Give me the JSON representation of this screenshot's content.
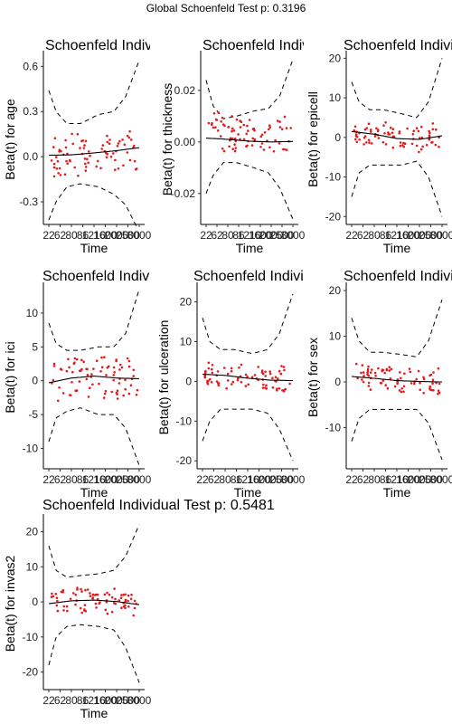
{
  "global_title": "Global Schoenfeld Test p: 0.3196",
  "chart_data": [
    {
      "type": "scatter",
      "title": "Schoenfeld Individual Test p",
      "xlabel": "Time",
      "ylabel": "Beta(t) for age",
      "xticks": [
        "22",
        "62",
        "80",
        "86",
        "1210",
        "1600",
        "2000",
        "2500",
        "3000"
      ],
      "ylim": [
        -0.45,
        0.68
      ],
      "yticks": [
        -0.3,
        0.0,
        0.3,
        0.6
      ],
      "ytick_labels": [
        "-0.3",
        "0.0",
        "0.3",
        "0.6"
      ],
      "smooth": {
        "x": [
          0,
          0.25,
          0.5,
          0.75,
          1
        ],
        "y": [
          0.01,
          0.012,
          0.025,
          0.04,
          0.06
        ]
      },
      "upper_band": {
        "x": [
          0,
          0.08,
          0.2,
          0.35,
          0.55,
          0.72,
          0.85,
          1
        ],
        "y": [
          0.44,
          0.3,
          0.22,
          0.22,
          0.28,
          0.3,
          0.4,
          0.64
        ]
      },
      "lower_band": {
        "x": [
          0,
          0.08,
          0.2,
          0.35,
          0.55,
          0.72,
          0.85,
          1
        ],
        "y": [
          -0.42,
          -0.3,
          -0.2,
          -0.18,
          -0.2,
          -0.25,
          -0.32,
          -0.5
        ]
      },
      "residual_range": [
        -0.18,
        0.18
      ],
      "seed": 11
    },
    {
      "type": "scatter",
      "title": "Schoenfeld Individual Test p",
      "xlabel": "Time",
      "ylabel": "Beta(t) for thickness",
      "xticks": [
        "22",
        "62",
        "80",
        "86",
        "1210",
        "1600",
        "2000",
        "2500",
        "3000"
      ],
      "ylim": [
        -0.032,
        0.034
      ],
      "yticks": [
        -0.02,
        0.0,
        0.02
      ],
      "ytick_labels": [
        "-0.02",
        "0.00",
        "0.02"
      ],
      "smooth": {
        "x": [
          0,
          0.25,
          0.5,
          0.75,
          1
        ],
        "y": [
          0.0015,
          0.001,
          0.0003,
          0.0,
          0.0002
        ]
      },
      "upper_band": {
        "x": [
          0,
          0.08,
          0.2,
          0.35,
          0.55,
          0.72,
          0.85,
          1
        ],
        "y": [
          0.024,
          0.014,
          0.009,
          0.01,
          0.012,
          0.013,
          0.018,
          0.032
        ]
      },
      "lower_band": {
        "x": [
          0,
          0.08,
          0.2,
          0.35,
          0.55,
          0.72,
          0.85,
          1
        ],
        "y": [
          -0.02,
          -0.013,
          -0.008,
          -0.008,
          -0.01,
          -0.012,
          -0.018,
          -0.03
        ]
      },
      "residual_range": [
        -0.006,
        0.012
      ],
      "seed": 23
    },
    {
      "type": "scatter",
      "title": "Schoenfeld Individual Test p",
      "xlabel": "Time",
      "ylabel": "Beta(t) for epicell",
      "xticks": [
        "22",
        "62",
        "80",
        "86",
        "1210",
        "1600",
        "2000",
        "2500",
        "3000"
      ],
      "ylim": [
        -22,
        21
      ],
      "yticks": [
        -20,
        -10,
        0,
        10,
        20
      ],
      "ytick_labels": [
        "-20",
        "-10",
        "0",
        "10",
        "20"
      ],
      "smooth": {
        "x": [
          0,
          0.25,
          0.5,
          0.75,
          1
        ],
        "y": [
          1.5,
          0.8,
          -0.3,
          -0.5,
          0.4
        ]
      },
      "upper_band": {
        "x": [
          0,
          0.08,
          0.2,
          0.35,
          0.55,
          0.72,
          0.85,
          1
        ],
        "y": [
          14,
          9,
          7,
          7,
          6,
          5,
          9,
          20
        ]
      },
      "lower_band": {
        "x": [
          0,
          0.08,
          0.2,
          0.35,
          0.55,
          0.72,
          0.85,
          1
        ],
        "y": [
          -15,
          -9,
          -7,
          -7,
          -7,
          -6,
          -10,
          -20
        ]
      },
      "residual_range": [
        -3.5,
        4
      ],
      "seed": 37
    },
    {
      "type": "scatter",
      "title": "Schoenfeld Individual Test p",
      "xlabel": "Time",
      "ylabel": "Beta(t) for ici",
      "xticks": [
        "22",
        "62",
        "80",
        "86",
        "1210",
        "1600",
        "2000",
        "2500",
        "3000"
      ],
      "ylim": [
        -13,
        14
      ],
      "yticks": [
        -10,
        -5,
        0,
        5,
        10
      ],
      "ytick_labels": [
        "-10",
        "-5",
        "0",
        "5",
        "10"
      ],
      "smooth": {
        "x": [
          0,
          0.25,
          0.5,
          0.75,
          1
        ],
        "y": [
          -0.3,
          0.4,
          0.7,
          0.4,
          0.3
        ]
      },
      "upper_band": {
        "x": [
          0,
          0.08,
          0.2,
          0.35,
          0.55,
          0.72,
          0.85,
          1
        ],
        "y": [
          8.5,
          5.5,
          4.5,
          4.5,
          5,
          5,
          7,
          13.5
        ]
      },
      "lower_band": {
        "x": [
          0,
          0.08,
          0.2,
          0.35,
          0.55,
          0.72,
          0.85,
          1
        ],
        "y": [
          -9,
          -5.5,
          -4.5,
          -4,
          -5,
          -5,
          -7,
          -12.5
        ]
      },
      "residual_range": [
        -3.5,
        4
      ],
      "seed": 51
    },
    {
      "type": "scatter",
      "title": "Schoenfeld Individual Test p",
      "xlabel": "Time",
      "ylabel": "Beta(t) for ulceration",
      "xticks": [
        "22",
        "62",
        "80",
        "86",
        "1210",
        "1600",
        "2000",
        "2500",
        "3000"
      ],
      "ylim": [
        -22,
        24
      ],
      "yticks": [
        -20,
        -10,
        0,
        10,
        20
      ],
      "ytick_labels": [
        "-20",
        "-10",
        "0",
        "10",
        "20"
      ],
      "smooth": {
        "x": [
          0,
          0.25,
          0.5,
          0.75,
          1
        ],
        "y": [
          1.8,
          1.5,
          0.8,
          0.3,
          0.2
        ]
      },
      "upper_band": {
        "x": [
          0,
          0.08,
          0.2,
          0.35,
          0.55,
          0.72,
          0.85,
          1
        ],
        "y": [
          16,
          10,
          8,
          8,
          7,
          8,
          12,
          22
        ]
      },
      "lower_band": {
        "x": [
          0,
          0.08,
          0.2,
          0.35,
          0.55,
          0.72,
          0.85,
          1
        ],
        "y": [
          -15,
          -10,
          -7,
          -7,
          -7,
          -8,
          -12,
          -20
        ]
      },
      "residual_range": [
        -4,
        4
      ],
      "seed": 67
    },
    {
      "type": "scatter",
      "title": "Schoenfeld Individual Test p",
      "xlabel": "Time",
      "ylabel": "Beta(t) for sex",
      "xticks": [
        "22",
        "62",
        "80",
        "86",
        "1210",
        "1600",
        "2000",
        "2500",
        "3000"
      ],
      "ylim": [
        -19,
        21
      ],
      "yticks": [
        -10,
        0,
        10,
        20
      ],
      "ytick_labels": [
        "-10",
        "0",
        "10",
        "20"
      ],
      "smooth": {
        "x": [
          0,
          0.25,
          0.5,
          0.75,
          1
        ],
        "y": [
          1.2,
          0.8,
          0.3,
          0.1,
          0.0
        ]
      },
      "upper_band": {
        "x": [
          0,
          0.08,
          0.2,
          0.35,
          0.55,
          0.72,
          0.85,
          1
        ],
        "y": [
          14,
          9,
          6.5,
          6.5,
          6,
          5.5,
          9,
          18
        ]
      },
      "lower_band": {
        "x": [
          0,
          0.08,
          0.2,
          0.35,
          0.55,
          0.72,
          0.85,
          1
        ],
        "y": [
          -13,
          -8,
          -6,
          -6,
          -6,
          -6,
          -9,
          -17
        ]
      },
      "residual_range": [
        -3,
        3.5
      ],
      "seed": 79
    },
    {
      "type": "scatter",
      "title": "Schoenfeld Individual Test p: 0.5481",
      "xlabel": "Time",
      "ylabel": "Beta(t) for invas2",
      "xticks": [
        "22",
        "62",
        "80",
        "86",
        "1210",
        "1600",
        "2000",
        "2500",
        "3000"
      ],
      "ylim": [
        -25,
        24
      ],
      "yticks": [
        -20,
        -10,
        0,
        10,
        20
      ],
      "ytick_labels": [
        "-20",
        "-10",
        "0",
        "10",
        "20"
      ],
      "smooth": {
        "x": [
          0,
          0.25,
          0.5,
          0.75,
          1
        ],
        "y": [
          -0.5,
          0.3,
          0.5,
          0.1,
          -0.8
        ]
      },
      "upper_band": {
        "x": [
          0,
          0.08,
          0.2,
          0.35,
          0.55,
          0.72,
          0.85,
          1
        ],
        "y": [
          16,
          9,
          7,
          7.5,
          8,
          9,
          13,
          22
        ]
      },
      "lower_band": {
        "x": [
          0,
          0.08,
          0.2,
          0.35,
          0.55,
          0.72,
          0.85,
          1
        ],
        "y": [
          -18,
          -10,
          -7,
          -6.5,
          -7,
          -8,
          -13,
          -23
        ]
      },
      "residual_range": [
        -4,
        4
      ],
      "seed": 91
    }
  ]
}
